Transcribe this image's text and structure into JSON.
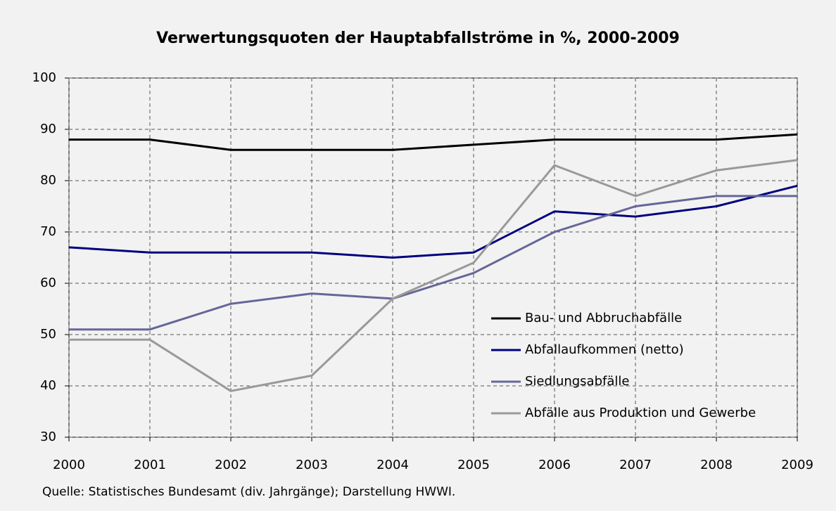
{
  "chart_data": {
    "type": "line",
    "title": "Verwertungsquoten der Hauptabfallströme in %, 2000-2009",
    "source": "Quelle: Statistisches Bundesamt (div. Jahrgänge); Darstellung HWWI.",
    "x": [
      2000,
      2001,
      2002,
      2003,
      2004,
      2005,
      2006,
      2007,
      2008,
      2009
    ],
    "xlim": [
      2000,
      2009
    ],
    "xticks": [
      2000,
      2001,
      2002,
      2003,
      2004,
      2005,
      2006,
      2007,
      2008,
      2009
    ],
    "ylim": [
      30,
      100
    ],
    "yticks": [
      30,
      40,
      50,
      60,
      70,
      80,
      90,
      100
    ],
    "grid": true,
    "legend": "lower right",
    "series": [
      {
        "name": "Bau- und Abbruchabfälle",
        "color": "#000000",
        "values": [
          88,
          88,
          86,
          86,
          86,
          87,
          88,
          88,
          88,
          89
        ]
      },
      {
        "name": "Abfallaufkommen (netto)",
        "color": "#000080",
        "values": [
          67,
          66,
          66,
          66,
          65,
          66,
          74,
          73,
          75,
          79
        ]
      },
      {
        "name": "Siedlungsabfälle",
        "color": "#666699",
        "values": [
          51,
          51,
          56,
          58,
          57,
          62,
          70,
          75,
          77,
          77
        ]
      },
      {
        "name": "Abfälle aus Produktion und Gewerbe",
        "color": "#999999",
        "values": [
          49,
          49,
          39,
          42,
          57,
          64,
          83,
          77,
          82,
          84
        ]
      }
    ]
  }
}
